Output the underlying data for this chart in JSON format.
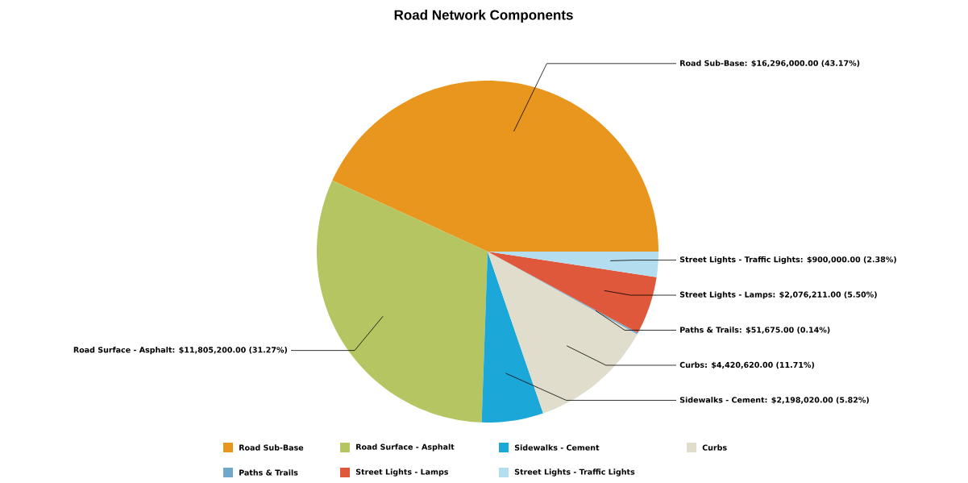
{
  "chart_data": {
    "type": "pie",
    "title": "Road Network Components",
    "categories": [
      "Road Sub-Base",
      "Road Surface - Asphalt",
      "Sidewalks - Cement",
      "Curbs",
      "Paths & Trails",
      "Street Lights - Lamps",
      "Street Lights - Traffic Lights"
    ],
    "values": [
      16296000,
      11805200,
      2198020,
      4420620,
      51675,
      2076211,
      900000
    ],
    "value_labels": [
      "Road Sub-Base: $16,296,000.00 (43.17%)",
      "Road Surface - Asphalt: $11,805,200.00 (31.27%)",
      "Sidewalks - Cement: $2,198,020.00 (5.82%)",
      "Curbs: $4,420,620.00 (11.71%)",
      "Paths & Trails: $51,675.00 (0.14%)",
      "Street Lights - Lamps: $2,076,211.00 (5.50%)",
      "Street Lights - Traffic Lights: $900,000.00 (2.38%)"
    ],
    "colors": [
      "#e8961e",
      "#b5c561",
      "#1ba8d8",
      "#e0ddcc",
      "#6fa8cb",
      "#e0583b",
      "#b3def0"
    ],
    "legend": "bottom"
  }
}
